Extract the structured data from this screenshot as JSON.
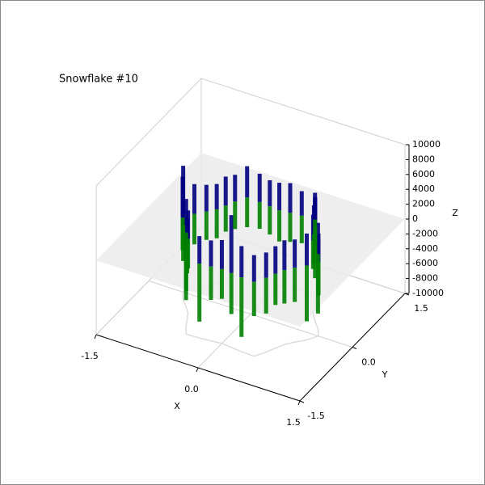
{
  "chart_data": {
    "type": "bar3d",
    "title": "Snowflake #10",
    "x_label": "X",
    "y_label": "Y",
    "z_label": "Z",
    "x": [
      1.0,
      0.91,
      0.8,
      0.71,
      0.65,
      0.59,
      0.5,
      0.31,
      0.15,
      0.0,
      -0.15,
      -0.31,
      -0.5,
      -0.59,
      -0.65,
      -0.71,
      -0.8,
      -0.91,
      -1.0,
      -0.91,
      -0.8,
      -0.71,
      -0.65,
      -0.59,
      -0.5,
      -0.31,
      -0.15,
      0.0,
      0.15,
      0.31,
      0.5,
      0.59,
      0.65,
      0.71,
      0.8,
      0.91
    ],
    "y": [
      0.0,
      0.16,
      0.29,
      0.41,
      0.55,
      0.7,
      0.87,
      0.86,
      0.84,
      0.82,
      0.84,
      0.86,
      0.87,
      0.7,
      0.55,
      0.41,
      0.29,
      0.16,
      0.0,
      -0.16,
      -0.29,
      -0.41,
      -0.55,
      -0.7,
      -0.87,
      -0.86,
      -0.84,
      -0.82,
      -0.84,
      -0.86,
      -0.87,
      -0.7,
      -0.55,
      -0.41,
      -0.29,
      -0.16
    ],
    "series": [
      {
        "color": "#000080",
        "values": [
          3800,
          4200,
          6500,
          3500,
          3900,
          4100,
          3600,
          3300,
          4000,
          3700,
          3500,
          3800,
          4200,
          3600,
          3900,
          3400,
          3600,
          4000,
          5500,
          8000,
          4500,
          3800,
          3600,
          3900,
          3300,
          3700,
          3500,
          3900,
          7800,
          4200,
          3600,
          3400,
          3700,
          4000,
          3800,
          4300
        ]
      },
      {
        "color": "#008000",
        "values": [
          -4500,
          -8000,
          -4200,
          -3800,
          -4000,
          -3600,
          -4100,
          -3700,
          -3900,
          -4200,
          -3800,
          -3600,
          -4000,
          -3700,
          -3500,
          -3900,
          -3800,
          -4100,
          -4400,
          -4800,
          -4300,
          -4000,
          -3800,
          -6500,
          -4200,
          -7800,
          -4500,
          -4000,
          -5500,
          -8000,
          -4600,
          -4800,
          -4200,
          -4500,
          -4600,
          -7500
        ]
      }
    ],
    "xlim": [
      -1.5,
      1.5
    ],
    "xticks": [
      -1.5,
      {
        "value": 0,
        "label": "0.0"
      },
      1.5
    ],
    "ylim": [
      -1.5,
      1.5
    ],
    "yticks": [
      -1.5,
      {
        "value": 0,
        "label": "0.0"
      },
      1.5
    ],
    "zlim": [
      -10000,
      10000
    ],
    "zticks": [
      -10000,
      -8000,
      -6000,
      -4000,
      -2000,
      0,
      2000,
      4000,
      6000,
      8000,
      10000
    ],
    "zero_plane": true,
    "grid": true
  }
}
